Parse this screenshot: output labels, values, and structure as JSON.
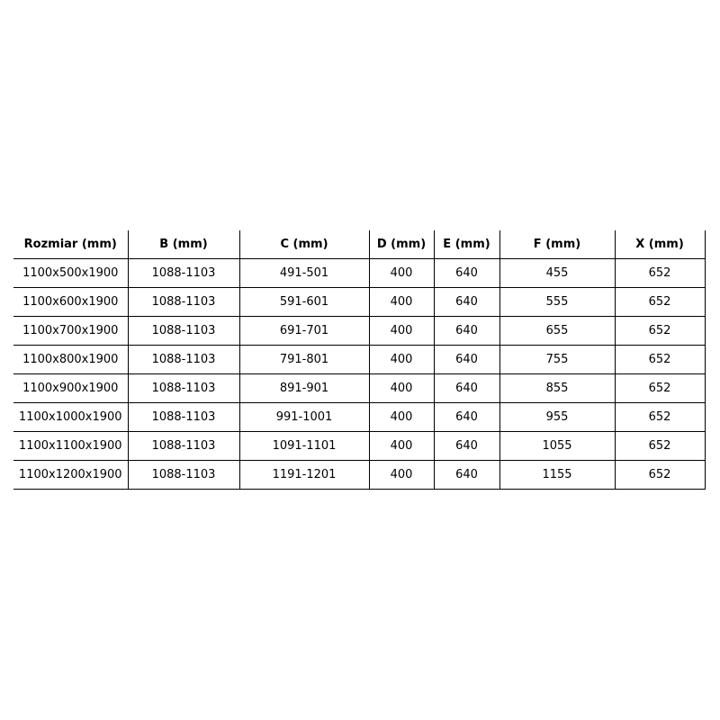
{
  "table": {
    "headers": [
      "Rozmiar (mm)",
      "B (mm)",
      "C (mm)",
      "D (mm)",
      "E (mm)",
      "F (mm)",
      "X (mm)"
    ],
    "rows": [
      [
        "1100x500x1900",
        "1088-1103",
        "491-501",
        "400",
        "640",
        "455",
        "652"
      ],
      [
        "1100x600x1900",
        "1088-1103",
        "591-601",
        "400",
        "640",
        "555",
        "652"
      ],
      [
        "1100x700x1900",
        "1088-1103",
        "691-701",
        "400",
        "640",
        "655",
        "652"
      ],
      [
        "1100x800x1900",
        "1088-1103",
        "791-801",
        "400",
        "640",
        "755",
        "652"
      ],
      [
        "1100x900x1900",
        "1088-1103",
        "891-901",
        "400",
        "640",
        "855",
        "652"
      ],
      [
        "1100x1000x1900",
        "1088-1103",
        "991-1001",
        "400",
        "640",
        "955",
        "652"
      ],
      [
        "1100x1100x1900",
        "1088-1103",
        "1091-1101",
        "400",
        "640",
        "1055",
        "652"
      ],
      [
        "1100x1200x1900",
        "1088-1103",
        "1191-1201",
        "400",
        "640",
        "1155",
        "652"
      ]
    ]
  }
}
